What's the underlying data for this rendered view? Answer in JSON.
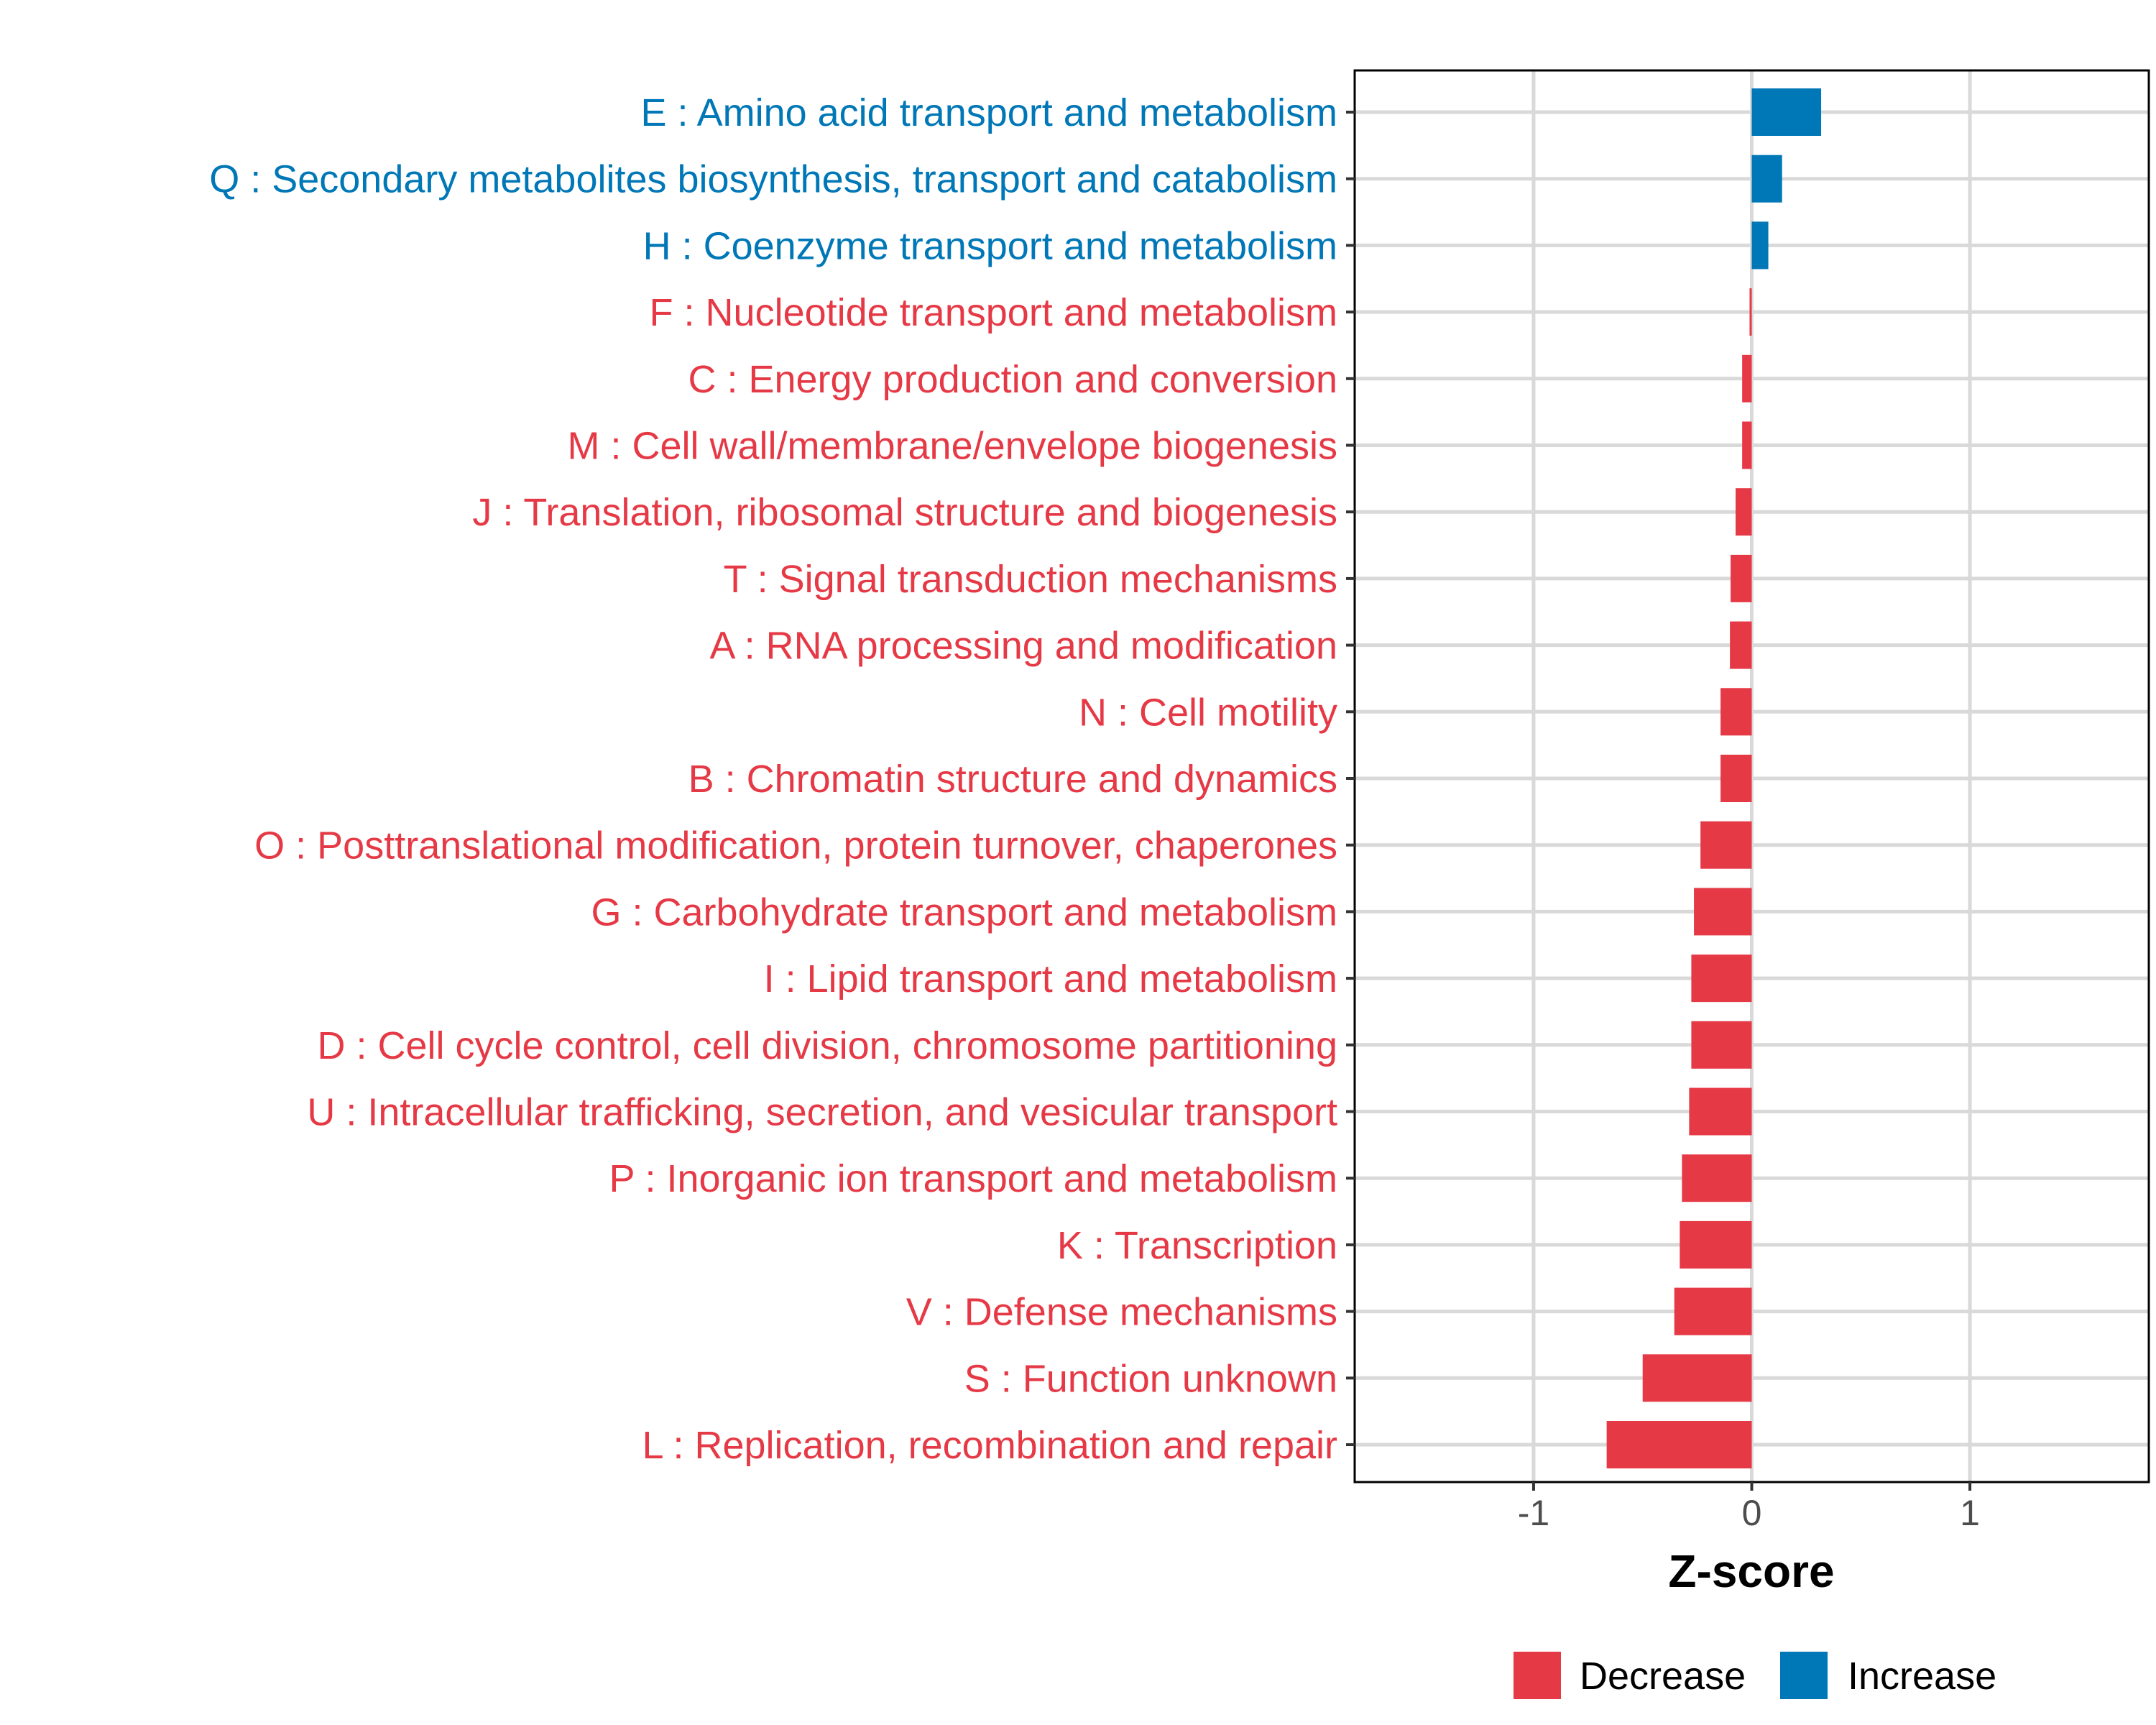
{
  "chart_data": {
    "type": "bar",
    "orientation": "horizontal",
    "title": "",
    "xlabel": "Z-score",
    "ylabel": "",
    "xlim": [
      -1.82,
      1.82
    ],
    "xticks": [
      -1,
      0,
      1
    ],
    "xtick_labels": [
      "-1",
      "0",
      "1"
    ],
    "grid": true,
    "legend_position": "bottom",
    "colors": {
      "Decrease": "#E63946",
      "Increase": "#0077B6"
    },
    "legend": [
      {
        "label": "Decrease",
        "color": "#E63946"
      },
      {
        "label": "Increase",
        "color": "#0077B6"
      }
    ],
    "categories": [
      "E : Amino acid transport and metabolism",
      "Q : Secondary metabolites biosynthesis, transport and catabolism",
      "H : Coenzyme transport and metabolism",
      "F : Nucleotide transport and metabolism",
      "C : Energy production and conversion",
      "M : Cell wall/membrane/envelope biogenesis",
      "J : Translation, ribosomal structure and biogenesis",
      "T : Signal transduction mechanisms",
      "A : RNA processing and modification",
      "N : Cell motility",
      "B : Chromatin structure and dynamics",
      "O : Posttranslational modification, protein turnover, chaperones",
      "G : Carbohydrate transport and metabolism",
      "I : Lipid transport and metabolism",
      "D : Cell cycle control, cell division, chromosome partitioning",
      "U : Intracellular trafficking, secretion, and vesicular transport",
      "P : Inorganic ion transport and metabolism",
      "K : Transcription",
      "V : Defense mechanisms",
      "S : Function unknown",
      "L : Replication, recombination and repair"
    ],
    "values": [
      0.318,
      0.139,
      0.076,
      -0.01,
      -0.044,
      -0.044,
      -0.074,
      -0.097,
      -0.1,
      -0.143,
      -0.143,
      -0.235,
      -0.265,
      -0.277,
      -0.277,
      -0.287,
      -0.32,
      -0.33,
      -0.355,
      -0.5,
      -0.665
    ],
    "groups": [
      "Increase",
      "Increase",
      "Increase",
      "Decrease",
      "Decrease",
      "Decrease",
      "Decrease",
      "Decrease",
      "Decrease",
      "Decrease",
      "Decrease",
      "Decrease",
      "Decrease",
      "Decrease",
      "Decrease",
      "Decrease",
      "Decrease",
      "Decrease",
      "Decrease",
      "Decrease",
      "Decrease"
    ]
  }
}
